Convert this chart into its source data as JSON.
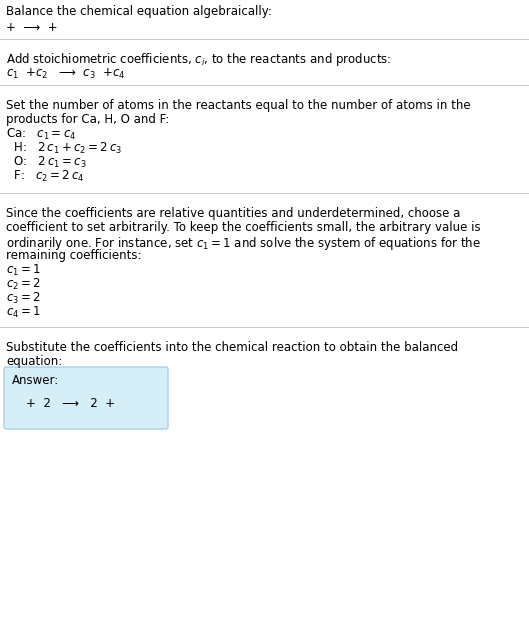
{
  "title": "Balance the chemical equation algebraically:",
  "line1": "+  ⟶  +",
  "section2_header": "Add stoichiometric coefficients, $c_i$, to the reactants and products:",
  "section2_eq": "$c_1$  +$c_2$   ⟶  $c_3$  +$c_4$",
  "section3_header": "Set the number of atoms in the reactants equal to the number of atoms in the\nproducts for Ca, H, O and F:",
  "section3_lines": [
    "Ca:   $c_1 = c_4$",
    "  H:   $2\\,c_1 + c_2 = 2\\,c_3$",
    "  O:   $2\\,c_1 = c_3$",
    "  F:   $c_2 = 2\\,c_4$"
  ],
  "section4_header": "Since the coefficients are relative quantities and underdetermined, choose a\ncoefficient to set arbitrarily. To keep the coefficients small, the arbitrary value is\nordinarily one. For instance, set $c_1 = 1$ and solve the system of equations for the\nremaining coefficients:",
  "section4_lines": [
    "$c_1 = 1$",
    "$c_2 = 2$",
    "$c_3 = 2$",
    "$c_4 = 1$"
  ],
  "section5_header": "Substitute the coefficients into the chemical reaction to obtain the balanced\nequation:",
  "answer_label": "Answer:",
  "answer_eq": "+  2   ⟶   2  +",
  "bg_color": "#ffffff",
  "answer_box_color": "#d6eef8",
  "answer_box_border": "#a8cfe8",
  "text_color": "#000000",
  "divider_color": "#c8c8c8",
  "font_size": 8.5,
  "mono_font": "DejaVu Sans Mono"
}
